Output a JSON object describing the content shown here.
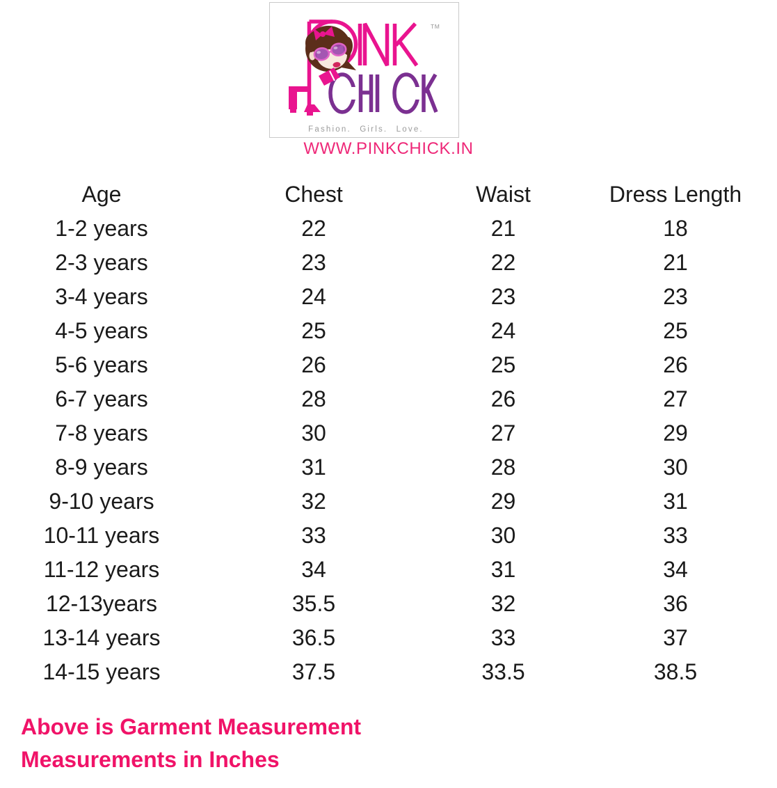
{
  "logo": {
    "brand_line1": "PINK",
    "brand_line2": "CHICK",
    "trademark": "TM",
    "tagline": "Fashion. Girls. Love.",
    "website": "WWW.PINKCHICK.IN"
  },
  "colors": {
    "brand_pink": "#e9148f",
    "brand_purple": "#7b3091",
    "website_pink": "#ee2878",
    "footer_pink": "#f01368",
    "tagline_gray": "#9b9b9b",
    "hair_brown": "#5c2e1a",
    "table_text": "#1a1a1a"
  },
  "table": {
    "headers": [
      "Age",
      "Chest",
      "Waist",
      "Dress Length"
    ],
    "rows": [
      [
        "1-2 years",
        "22",
        "21",
        "18"
      ],
      [
        "2-3 years",
        "23",
        "22",
        "21"
      ],
      [
        "3-4 years",
        "24",
        "23",
        "23"
      ],
      [
        "4-5 years",
        "25",
        "24",
        "25"
      ],
      [
        "5-6 years",
        "26",
        "25",
        "26"
      ],
      [
        "6-7 years",
        "28",
        "26",
        "27"
      ],
      [
        "7-8 years",
        "30",
        "27",
        "29"
      ],
      [
        "8-9 years",
        "31",
        "28",
        "30"
      ],
      [
        "9-10 years",
        "32",
        "29",
        "31"
      ],
      [
        "10-11 years",
        "33",
        "30",
        "33"
      ],
      [
        "11-12 years",
        "34",
        "31",
        "34"
      ],
      [
        "12-13years",
        "35.5",
        "32",
        "36"
      ],
      [
        "13-14 years",
        "36.5",
        "33",
        "37"
      ],
      [
        "14-15 years",
        "37.5",
        "33.5",
        "38.5"
      ]
    ]
  },
  "footer": {
    "line1": "Above is Garment Measurement",
    "line2": "Measurements in Inches"
  }
}
